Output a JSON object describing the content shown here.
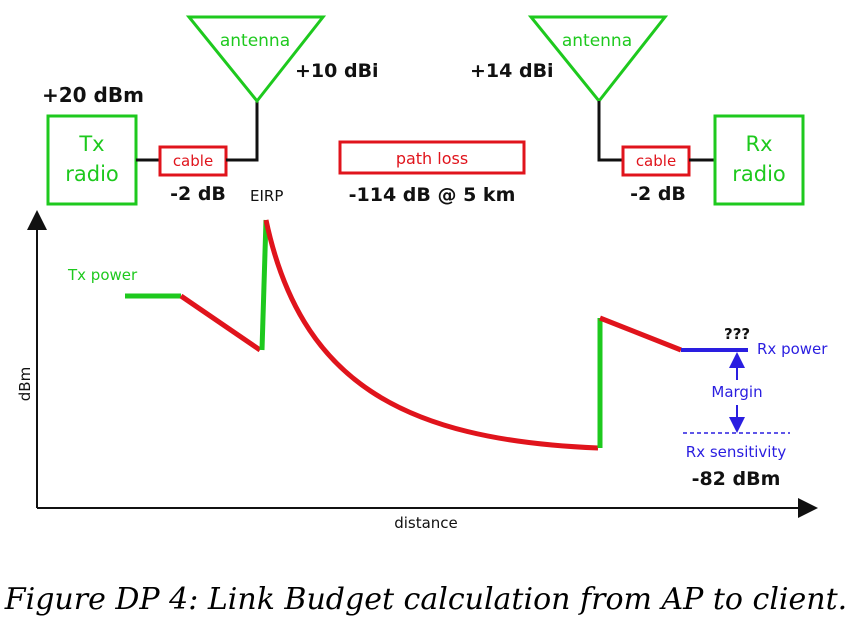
{
  "colors": {
    "green": "#1ec91e",
    "red": "#e0141c",
    "blue": "#2a1ee0",
    "black": "#111111"
  },
  "tx": {
    "power": "+20 dBm",
    "radio_line1": "Tx",
    "radio_line2": "radio",
    "cable": "cable",
    "cable_loss": "-2 dB",
    "antenna": "antenna",
    "antenna_gain": "+10 dBi",
    "eirp": "EIRP"
  },
  "path": {
    "label": "path loss",
    "loss": "-114 dB @ 5 km"
  },
  "rx": {
    "antenna": "antenna",
    "antenna_gain": "+14 dBi",
    "cable": "cable",
    "cable_loss": "-2 dB",
    "radio_line1": "Rx",
    "radio_line2": "radio"
  },
  "plot": {
    "ylabel": "dBm",
    "xlabel": "distance",
    "tx_power_label": "Tx power",
    "rx_power_label": "Rx power",
    "unknown": "???",
    "margin_label": "Margin",
    "sensitivity_label": "Rx sensitivity",
    "sensitivity_value": "-82 dBm"
  },
  "caption": "Figure DP 4: Link Budget calculation from AP to client."
}
